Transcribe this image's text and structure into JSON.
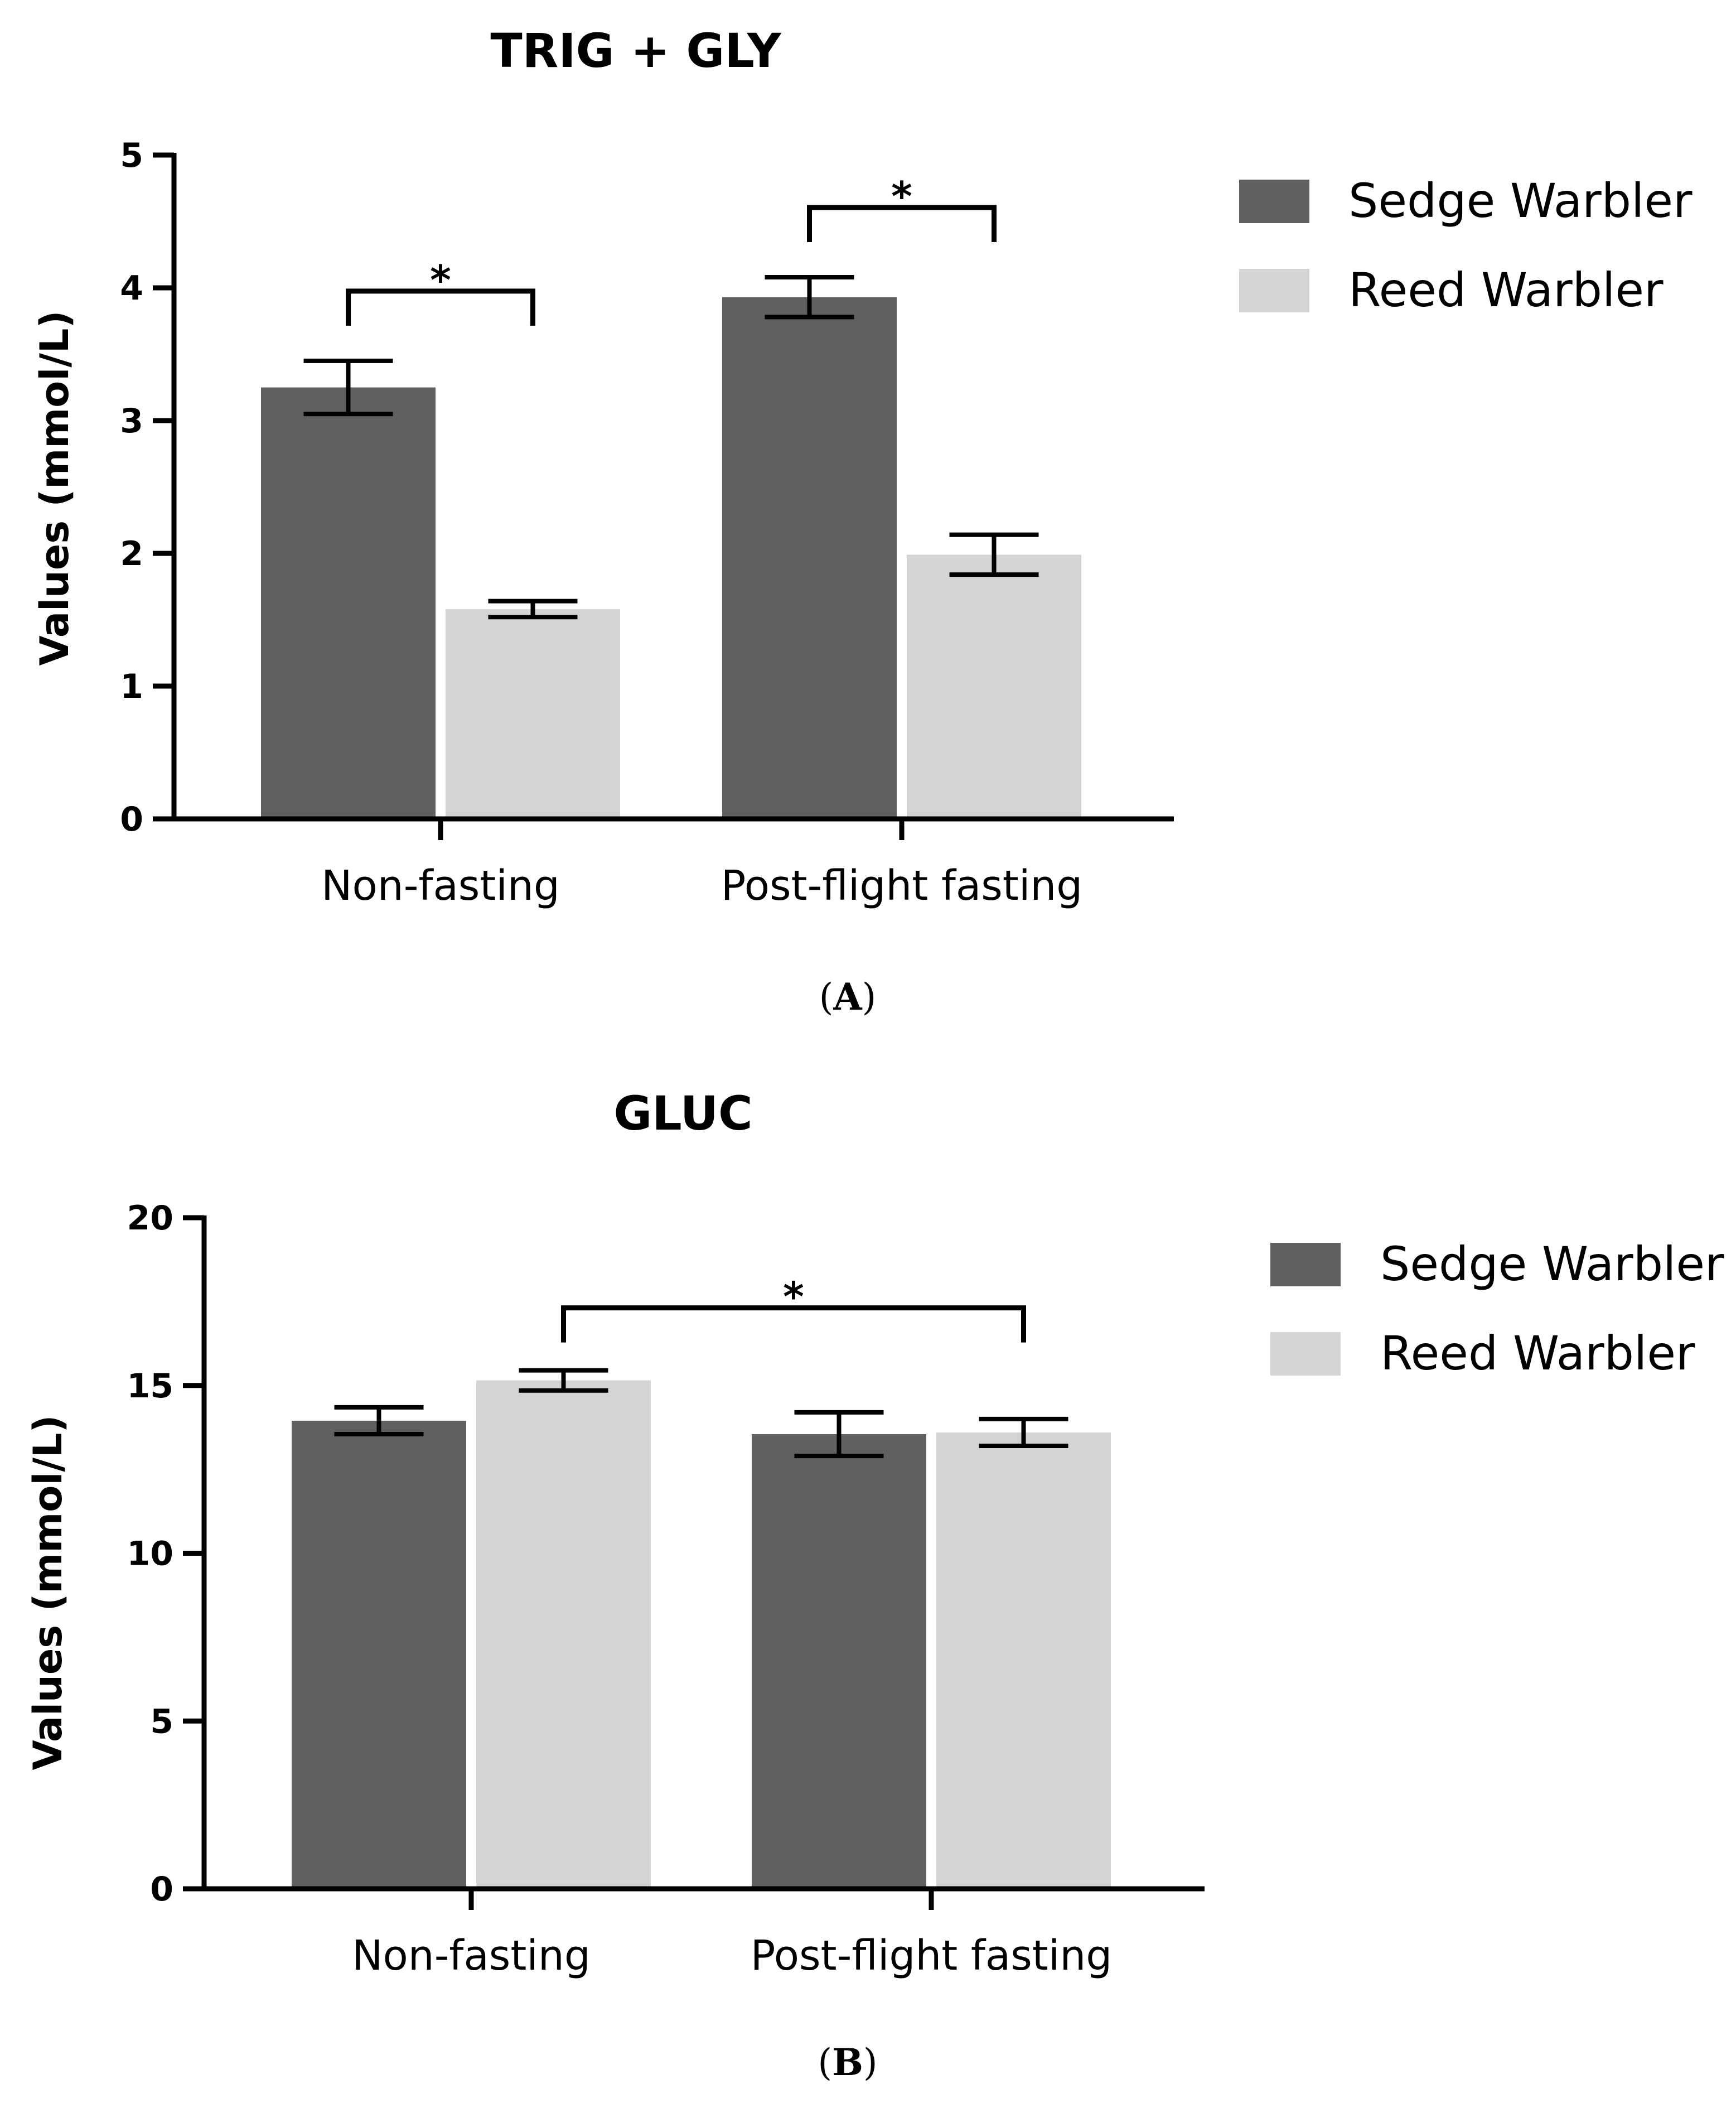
{
  "chart_data": [
    {
      "type": "bar",
      "title": "TRIG + GLY",
      "ylabel": "Values (mmol/L)",
      "xlabel": "",
      "categories": [
        "Non-fasting",
        "Post-flight fasting"
      ],
      "ylim": [
        0,
        5
      ],
      "yticks": [
        "0",
        "1",
        "2",
        "3",
        "4",
        "5"
      ],
      "series": [
        {
          "name": "Sedge Warbler",
          "values": [
            3.25,
            3.93
          ],
          "error": [
            0.2,
            0.15
          ],
          "color": "#606060"
        },
        {
          "name": "Reed Warbler",
          "values": [
            1.58,
            1.99
          ],
          "error": [
            0.06,
            0.15
          ],
          "color": "#d4d4d4"
        }
      ],
      "significance": [
        {
          "from": [
            0,
            0
          ],
          "to": [
            0,
            1
          ],
          "label": "*"
        },
        {
          "from": [
            1,
            0
          ],
          "to": [
            1,
            1
          ],
          "label": "*"
        }
      ],
      "legend_position": "top-right",
      "grid": false,
      "panel_label": "A"
    },
    {
      "type": "bar",
      "title": "GLUC",
      "ylabel": "Values (mmol/L)",
      "xlabel": "",
      "categories": [
        "Non-fasting",
        "Post-flight fasting"
      ],
      "ylim": [
        0,
        20
      ],
      "yticks": [
        "0",
        "5",
        "10",
        "15",
        "20"
      ],
      "series": [
        {
          "name": "Sedge Warbler",
          "values": [
            13.95,
            13.55
          ],
          "error": [
            0.4,
            0.65
          ],
          "color": "#606060"
        },
        {
          "name": "Reed Warbler",
          "values": [
            15.15,
            13.6
          ],
          "error": [
            0.3,
            0.4
          ],
          "color": "#d4d4d4"
        }
      ],
      "significance": [
        {
          "from": [
            0,
            1
          ],
          "to": [
            1,
            1
          ],
          "label": "*"
        }
      ],
      "legend_position": "top-right",
      "grid": false,
      "panel_label": "B"
    }
  ]
}
